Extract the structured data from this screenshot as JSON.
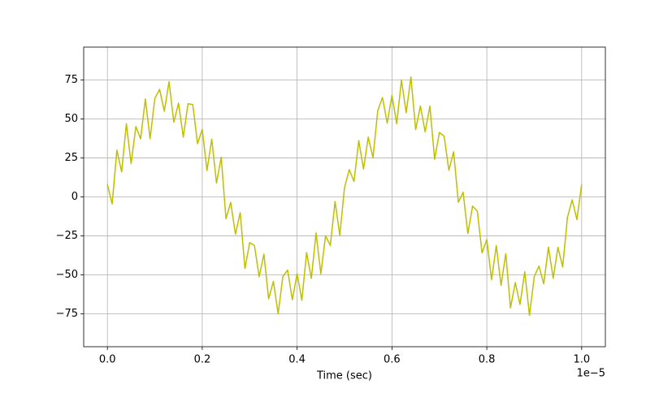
{
  "chart_data": {
    "type": "line",
    "xlabel": "Time (sec)",
    "x_offset_label": "1e−5",
    "color": "#bfbf00",
    "grid": true,
    "xlim": [
      -0.05,
      1.05
    ],
    "ylim": [
      -96,
      96
    ],
    "xticks": [
      {
        "value": 0,
        "label": "0.0"
      },
      0.2,
      0.4,
      0.6,
      0.8,
      {
        "value": 1,
        "label": "1.0"
      }
    ],
    "yticks": [
      {
        "value": -75,
        "label": "−75"
      },
      {
        "value": -50,
        "label": "−50"
      },
      {
        "value": -25,
        "label": "−25"
      },
      0,
      25,
      50,
      75
    ],
    "x": [
      0,
      0.01,
      0.02,
      0.03,
      0.04,
      0.05,
      0.06,
      0.07,
      0.08,
      0.09,
      0.1,
      0.11,
      0.12,
      0.13,
      0.14,
      0.15,
      0.16,
      0.17,
      0.18,
      0.19,
      0.2,
      0.21,
      0.22,
      0.23,
      0.24,
      0.25,
      0.26,
      0.27,
      0.28,
      0.29,
      0.3,
      0.31,
      0.32,
      0.33,
      0.34,
      0.35,
      0.36,
      0.37,
      0.38,
      0.39,
      0.4,
      0.41,
      0.42,
      0.43,
      0.44,
      0.45,
      0.46,
      0.47,
      0.48,
      0.49,
      0.5,
      0.51,
      0.52,
      0.53,
      0.54,
      0.55,
      0.56,
      0.57,
      0.58,
      0.59,
      0.6,
      0.61,
      0.62,
      0.63,
      0.64,
      0.65,
      0.66,
      0.67,
      0.68,
      0.69,
      0.7,
      0.71,
      0.72,
      0.73,
      0.74,
      0.75,
      0.76,
      0.77,
      0.78,
      0.79,
      0.8,
      0.81,
      0.82,
      0.83,
      0.84,
      0.85,
      0.86,
      0.87,
      0.88,
      0.89,
      0.9,
      0.91,
      0.92,
      0.93,
      0.94,
      0.95,
      0.96,
      0.97,
      0.98,
      0.99,
      1
    ],
    "values": [
      8,
      -4.5,
      29.9,
      16.1,
      46.9,
      21.3,
      45.1,
      37.2,
      62.7,
      37.3,
      63.1,
      68.9,
      54.9,
      73.9,
      47.9,
      60.1,
      38.3,
      59.7,
      59.2,
      34.1,
      43.3,
      16.9,
      37.1,
      8.9,
      25.5,
      -14,
      -3.5,
      -23.9,
      -10.1,
      -45.9,
      -29.3,
      -31.1,
      -51.2,
      -36.7,
      -65.3,
      -54.1,
      -74.9,
      -50.9,
      -46.9,
      -65.9,
      -49.1,
      -66.3,
      -35.7,
      -52.2,
      -23.1,
      -49.3,
      -24.9,
      -31.1,
      -2.9,
      -24.5,
      6,
      17.5,
      9.9,
      36.1,
      17.9,
      38.3,
      25.1,
      55.2,
      63.7,
      47.3,
      65.1,
      46.9,
      74.9,
      53.9,
      76.9,
      43.1,
      58.3,
      41.7,
      58.2,
      24.1,
      41.3,
      38.9,
      17.1,
      28.9,
      -3.5,
      3,
      -23.5,
      -5.9,
      -9.1,
      -35.9,
      -27.3,
      -53.1,
      -31.2,
      -56.7,
      -36.3,
      -71.1,
      -54.9,
      -68.9,
      -47.9,
      -75.9,
      -51.1,
      -44.3,
      -55.7,
      -32.2,
      -52.1,
      -32.3,
      -44.9,
      -13.1,
      -1.9,
      -14.5,
      8
    ]
  }
}
